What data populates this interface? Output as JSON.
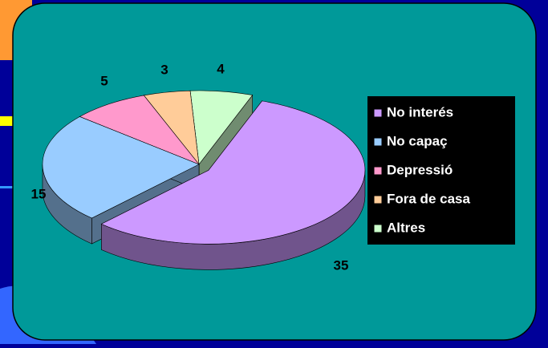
{
  "chart_data": {
    "type": "pie3d",
    "categories": [
      "No interés",
      "No capaç",
      "Depressió",
      "Fora de casa",
      "Altres"
    ],
    "values": [
      35,
      15,
      5,
      3,
      4
    ],
    "colors": [
      "#cc99ff",
      "#99ccff",
      "#ff99cc",
      "#ffcc99",
      "#ccffcc"
    ],
    "legend": "right"
  }
}
